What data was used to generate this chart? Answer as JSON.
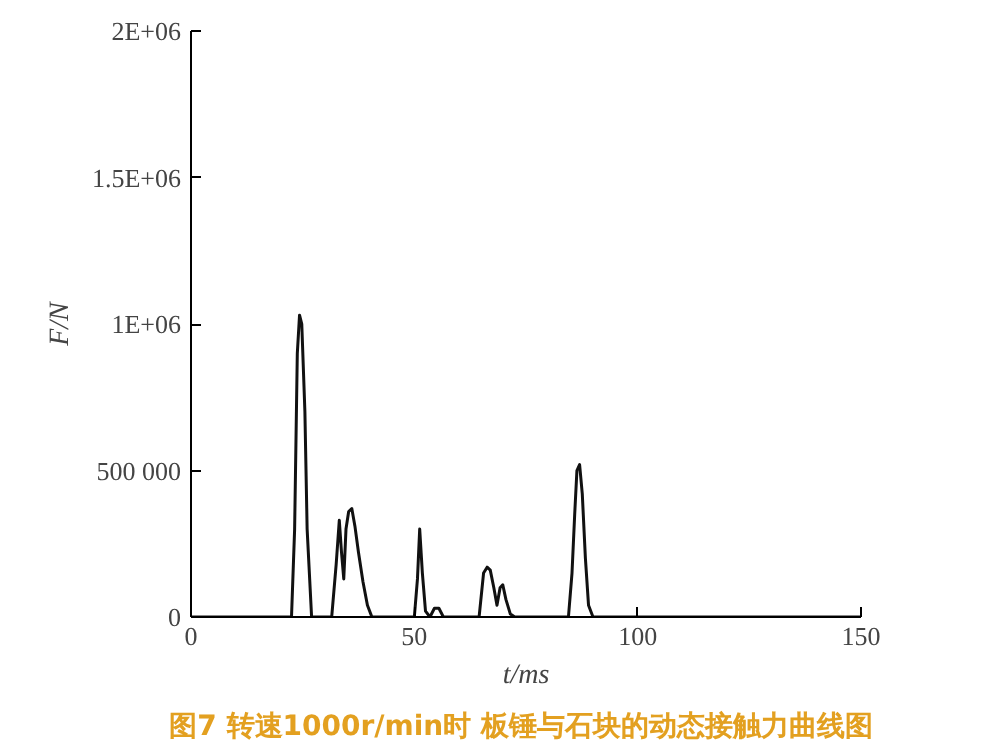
{
  "chart_data": {
    "type": "line",
    "xlabel": "t/ms",
    "ylabel": "F/N",
    "annotations": [
      "图7  转速1000r/min时 板锤与石块的动态接触力曲线图"
    ],
    "xlim": [
      0,
      150
    ],
    "ylim": [
      0,
      2000000
    ],
    "xticks": [
      0,
      50,
      100,
      150
    ],
    "yticks": [
      {
        "value": 0,
        "label": "0"
      },
      {
        "value": 500000,
        "label": "500 000"
      },
      {
        "value": 1000000,
        "label": "1E+06"
      },
      {
        "value": 1500000,
        "label": "1.5E+06"
      },
      {
        "value": 2000000,
        "label": "2E+06"
      }
    ],
    "grid": false,
    "marker": "none",
    "line_style": "solid",
    "series": [
      {
        "color": "#111111",
        "x": [
          0,
          20,
          22.5,
          23.2,
          23.8,
          24.3,
          24.8,
          25.5,
          26,
          27,
          29,
          31.5,
          32.5,
          33.2,
          33.7,
          34.2,
          34.7,
          35.3,
          36,
          36.7,
          37.5,
          38.5,
          39.5,
          40.5,
          42,
          49,
          50,
          50.7,
          51.2,
          51.8,
          52.5,
          53.5,
          54.5,
          55.5,
          56.5,
          57.5,
          63,
          64.5,
          65.5,
          66.3,
          67,
          67.8,
          68.5,
          69.2,
          69.8,
          70.5,
          71.5,
          72.5,
          83.5,
          84.5,
          85.3,
          85.9,
          86.4,
          87,
          87.6,
          88.3,
          89,
          90,
          150
        ],
        "values": [
          0,
          0,
          0,
          300000,
          900000,
          1030000,
          1000000,
          700000,
          300000,
          0,
          0,
          0,
          180000,
          330000,
          220000,
          130000,
          300000,
          360000,
          370000,
          310000,
          220000,
          120000,
          40000,
          0,
          0,
          0,
          0,
          130000,
          300000,
          150000,
          20000,
          0,
          30000,
          30000,
          0,
          0,
          0,
          0,
          150000,
          170000,
          160000,
          100000,
          40000,
          100000,
          110000,
          60000,
          10000,
          0,
          0,
          0,
          150000,
          350000,
          500000,
          520000,
          420000,
          200000,
          40000,
          0,
          0
        ]
      }
    ]
  }
}
